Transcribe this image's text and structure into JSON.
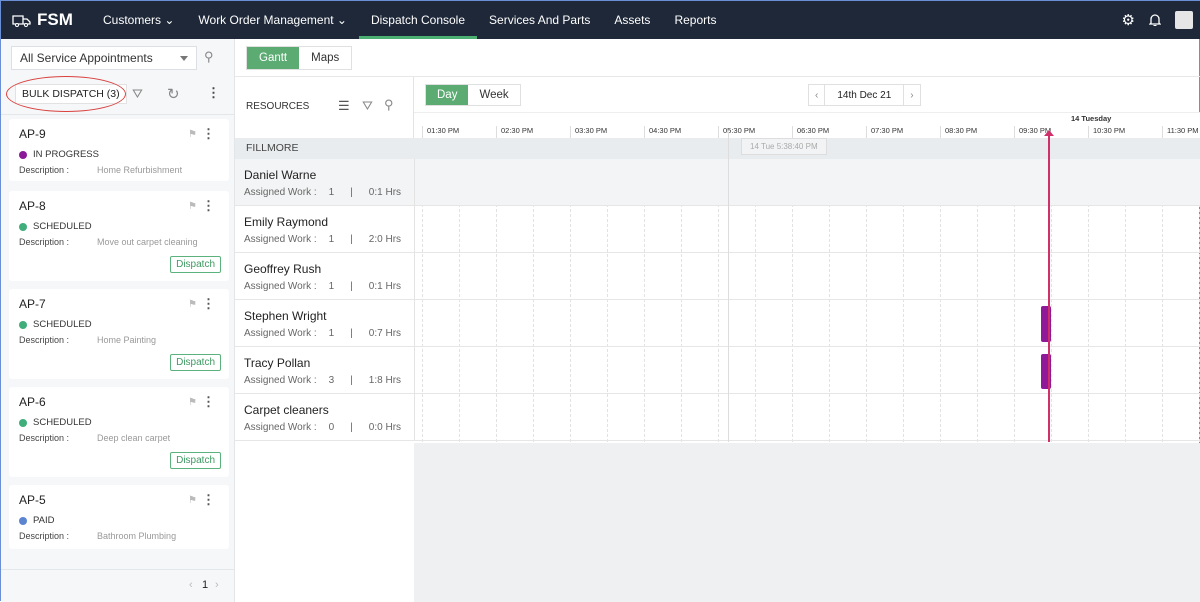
{
  "nav": {
    "logo": "FSM",
    "items": [
      {
        "label": "Customers ⌄"
      },
      {
        "label": "Work Order Management ⌄"
      },
      {
        "label": "Dispatch Console"
      },
      {
        "label": "Services And Parts"
      },
      {
        "label": "Assets"
      },
      {
        "label": "Reports"
      }
    ],
    "active": "Dispatch Console"
  },
  "left": {
    "view_select": "All Service Appointments",
    "bulk_dispatch": "BULK DISPATCH (3)",
    "cards": [
      {
        "id": "AP-9",
        "status": "IN PROGRESS",
        "color": "#8b1a99",
        "desc_label": "Description :",
        "desc": "Home Refurbishment",
        "dispatch": ""
      },
      {
        "id": "AP-8",
        "status": "SCHEDULED",
        "color": "#3fae7a",
        "desc_label": "Description :",
        "desc": "Move out carpet cleaning",
        "dispatch": "Dispatch"
      },
      {
        "id": "AP-7",
        "status": "SCHEDULED",
        "color": "#3fae7a",
        "desc_label": "Description :",
        "desc": "Home Painting",
        "dispatch": "Dispatch"
      },
      {
        "id": "AP-6",
        "status": "SCHEDULED",
        "color": "#3fae7a",
        "desc_label": "Description :",
        "desc": "Deep clean carpet",
        "dispatch": "Dispatch"
      },
      {
        "id": "AP-5",
        "status": "PAID",
        "color": "#5b84d1",
        "desc_label": "Description :",
        "desc": "Bathroom Plumbing",
        "dispatch": ""
      }
    ],
    "page": "1"
  },
  "tabs": [
    "Gantt",
    "Maps"
  ],
  "resources_label": "RESOURCES",
  "view": {
    "day": "Day",
    "week": "Week",
    "date": "14th Dec 21"
  },
  "timeline": {
    "day_label": "14 Tuesday",
    "hours": [
      "01:30 PM",
      "02:30 PM",
      "03:30 PM",
      "04:30 PM",
      "05:30 PM",
      "06:30 PM",
      "07:30 PM",
      "08:30 PM",
      "09:30 PM",
      "10:30 PM",
      "11:30 PM"
    ],
    "hover_tooltip": "14 Tue 5:38:40 PM"
  },
  "group": "FILLMORE",
  "resources": [
    {
      "name": "Daniel Warne",
      "label": "Assigned Work :",
      "count": "1",
      "sep": "|",
      "hrs": "0:1 Hrs"
    },
    {
      "name": "Emily Raymond",
      "label": "Assigned Work :",
      "count": "1",
      "sep": "|",
      "hrs": "2:0 Hrs"
    },
    {
      "name": "Geoffrey Rush",
      "label": "Assigned Work :",
      "count": "1",
      "sep": "|",
      "hrs": "0:1 Hrs"
    },
    {
      "name": "Stephen Wright",
      "label": "Assigned Work :",
      "count": "1",
      "sep": "|",
      "hrs": "0:7 Hrs"
    },
    {
      "name": "Tracy Pollan",
      "label": "Assigned Work :",
      "count": "3",
      "sep": "|",
      "hrs": "1:8 Hrs"
    },
    {
      "name": "Carpet cleaners",
      "label": "Assigned Work :",
      "count": "0",
      "sep": "|",
      "hrs": "0:0 Hrs"
    }
  ]
}
